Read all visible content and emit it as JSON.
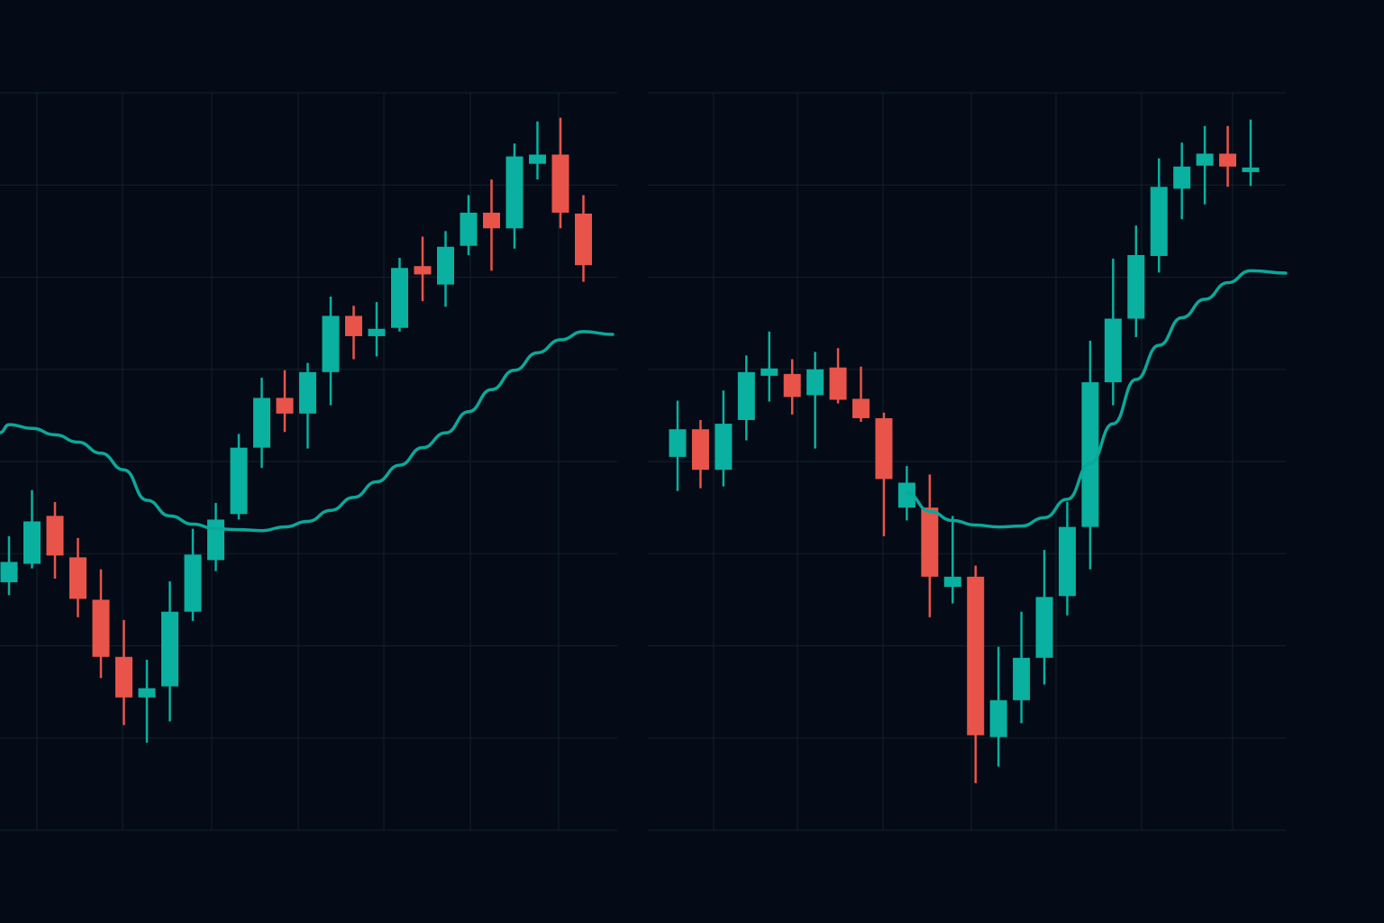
{
  "colors": {
    "background": "#040b16",
    "grid": "#10222c",
    "up": "#0ab0a0",
    "down": "#e8544a",
    "moving_average": "#0aa89a"
  },
  "chart_data": [
    {
      "type": "candlestick",
      "title": "",
      "ylim": [
        0,
        80
      ],
      "grid": true,
      "legend": "none",
      "candles": [
        [
          26.9,
          29.1,
          31.9,
          25.5
        ],
        [
          28.9,
          33.5,
          36.9,
          28.4
        ],
        [
          34.1,
          29.8,
          35.6,
          27.3
        ],
        [
          29.6,
          25.1,
          31.7,
          23.1
        ],
        [
          25.0,
          18.8,
          28.3,
          16.5
        ],
        [
          18.8,
          14.4,
          22.8,
          11.4
        ],
        [
          14.4,
          15.4,
          18.5,
          9.5
        ],
        [
          15.6,
          23.7,
          27.0,
          11.8
        ],
        [
          23.7,
          29.9,
          32.7,
          22.7
        ],
        [
          29.3,
          33.7,
          35.5,
          28.1
        ],
        [
          34.3,
          41.5,
          43.0,
          33.7
        ],
        [
          41.5,
          46.9,
          49.1,
          39.3
        ],
        [
          46.9,
          45.2,
          49.9,
          43.2
        ],
        [
          45.2,
          49.7,
          50.7,
          41.4
        ],
        [
          49.7,
          55.8,
          57.9,
          46.1
        ],
        [
          55.8,
          53.6,
          56.9,
          51.1
        ],
        [
          53.6,
          54.4,
          57.3,
          51.4
        ],
        [
          54.5,
          61.0,
          62.1,
          54.1
        ],
        [
          61.2,
          60.3,
          64.4,
          57.4
        ],
        [
          59.2,
          63.3,
          65.0,
          56.8
        ],
        [
          63.4,
          67.0,
          68.9,
          62.4
        ],
        [
          67.0,
          65.3,
          70.6,
          60.7
        ],
        [
          65.3,
          73.1,
          74.5,
          63.1
        ],
        [
          72.3,
          73.3,
          76.9,
          70.6
        ],
        [
          73.3,
          67.0,
          77.3,
          65.3
        ],
        [
          66.9,
          61.3,
          68.9,
          59.5
        ]
      ],
      "candle_fields": [
        "open",
        "close",
        "high",
        "low"
      ],
      "moving_average": [
        44.0,
        43.6,
        42.9,
        42.1,
        40.9,
        39.1,
        35.8,
        34.1,
        33.2,
        32.7,
        32.6,
        32.5,
        32.9,
        33.5,
        34.7,
        36.1,
        37.8,
        39.6,
        41.5,
        43.1,
        45.4,
        47.8,
        49.9,
        51.8,
        53.2,
        54.1
      ]
    },
    {
      "type": "candlestick",
      "title": "",
      "ylim": [
        0,
        80
      ],
      "grid": true,
      "legend": "none",
      "candles": [
        [
          40.5,
          43.5,
          46.6,
          36.8
        ],
        [
          43.5,
          39.1,
          44.5,
          37.1
        ],
        [
          39.1,
          44.1,
          47.7,
          37.3
        ],
        [
          44.5,
          49.7,
          51.5,
          42.3
        ],
        [
          49.3,
          50.1,
          54.1,
          46.5
        ],
        [
          49.5,
          47.0,
          51.1,
          45.1
        ],
        [
          47.2,
          50.0,
          51.9,
          41.4
        ],
        [
          50.2,
          46.7,
          52.3,
          46.3
        ],
        [
          46.8,
          44.7,
          50.3,
          44.3
        ],
        [
          44.7,
          38.1,
          45.3,
          31.9
        ],
        [
          35.0,
          37.7,
          39.5,
          33.6
        ],
        [
          35.0,
          27.5,
          38.6,
          23.1
        ],
        [
          26.4,
          27.5,
          34.1,
          24.6
        ],
        [
          27.5,
          10.3,
          28.7,
          5.1
        ],
        [
          10.1,
          14.1,
          19.9,
          6.9
        ],
        [
          14.1,
          18.7,
          23.7,
          11.6
        ],
        [
          18.7,
          25.3,
          30.4,
          15.8
        ],
        [
          25.4,
          32.9,
          35.6,
          23.3
        ],
        [
          32.9,
          48.6,
          53.1,
          28.3
        ],
        [
          48.6,
          55.5,
          62.0,
          46.1
        ],
        [
          55.5,
          62.4,
          65.6,
          53.5
        ],
        [
          62.3,
          69.8,
          72.9,
          60.5
        ],
        [
          69.6,
          72.0,
          74.6,
          66.3
        ],
        [
          72.1,
          73.4,
          76.4,
          67.9
        ],
        [
          73.4,
          72.0,
          76.4,
          69.8
        ],
        [
          71.4,
          71.9,
          77.1,
          69.9
        ]
      ],
      "candle_fields": [
        "open",
        "close",
        "high",
        "low"
      ],
      "moving_average": [
        null,
        null,
        null,
        null,
        null,
        null,
        null,
        null,
        null,
        null,
        36.6,
        34.6,
        33.6,
        33.1,
        32.9,
        33.0,
        33.9,
        35.9,
        39.8,
        44.1,
        48.9,
        52.6,
        55.6,
        57.6,
        59.4,
        60.7
      ]
    }
  ]
}
